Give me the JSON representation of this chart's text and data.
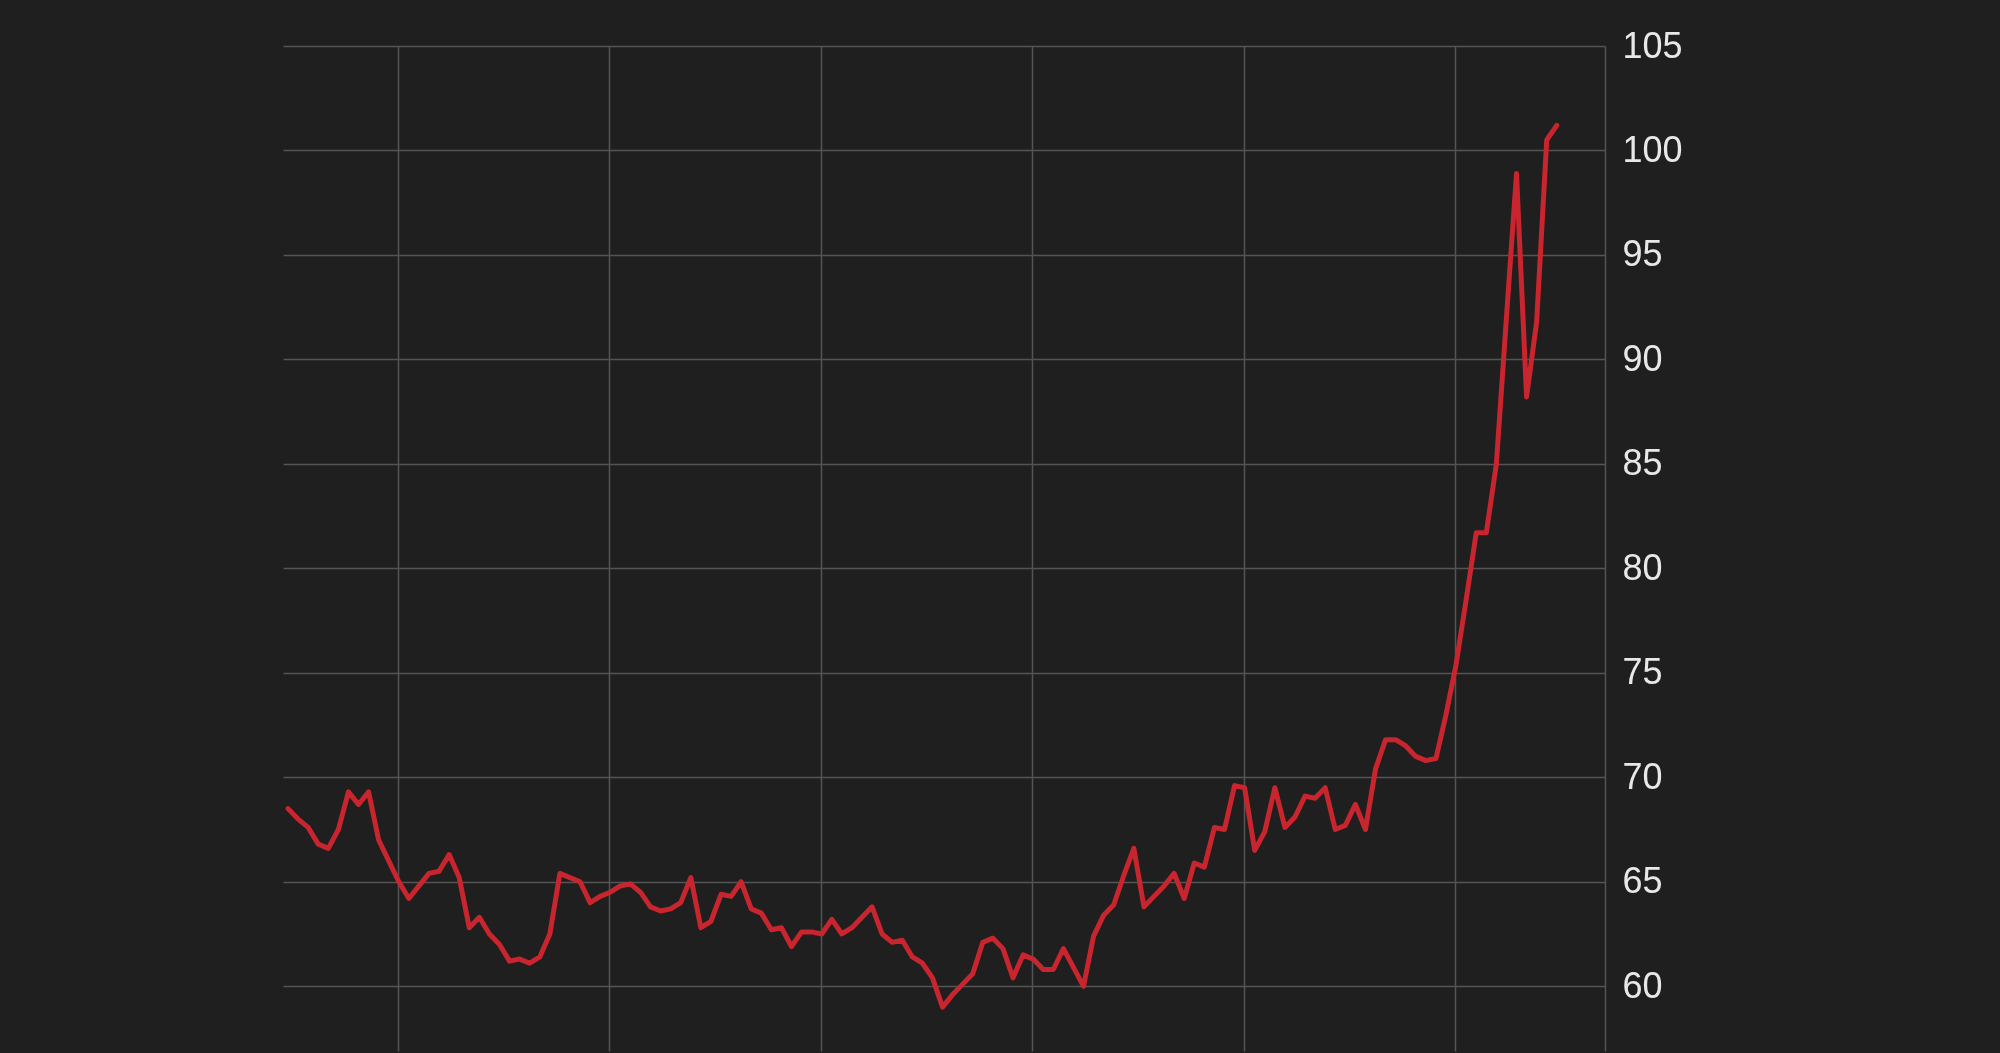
{
  "chart_data": {
    "type": "line",
    "categories": [
      null,
      null,
      null,
      null,
      null,
      null,
      null,
      null,
      null,
      null,
      null,
      null,
      null,
      null,
      null,
      null,
      null,
      null,
      null,
      null,
      null,
      null,
      null,
      null,
      null,
      null,
      null,
      null,
      null,
      null,
      null,
      null,
      null,
      null,
      null,
      null,
      null,
      null,
      null,
      null,
      null,
      null,
      null,
      null,
      null,
      null,
      null,
      null,
      null,
      null,
      null,
      null,
      null,
      null,
      null,
      null,
      null,
      null,
      null,
      null,
      null,
      null,
      null,
      null,
      null,
      null,
      null,
      null,
      null,
      null,
      null,
      null,
      null,
      null,
      null,
      null,
      null,
      null,
      null,
      null,
      null,
      null,
      null,
      null,
      null,
      null,
      null,
      null,
      null,
      null,
      null,
      null,
      null,
      null,
      null,
      null,
      null,
      null,
      null,
      null,
      null,
      null,
      null,
      null,
      null,
      null,
      null,
      null,
      null,
      null,
      null,
      null,
      null,
      null,
      null,
      null,
      null,
      null,
      null,
      null,
      null,
      null,
      null,
      null,
      null,
      null,
      null
    ],
    "values": [
      68.5,
      68.0,
      67.6,
      66.8,
      66.6,
      67.5,
      69.3,
      68.7,
      69.3,
      67.0,
      66.0,
      65.0,
      64.2,
      64.8,
      65.4,
      65.5,
      66.3,
      65.2,
      62.8,
      63.3,
      62.5,
      62.0,
      61.2,
      61.3,
      61.1,
      61.4,
      62.5,
      65.4,
      65.2,
      65.0,
      64.0,
      64.3,
      64.5,
      64.8,
      64.9,
      64.5,
      63.8,
      63.6,
      63.7,
      64.0,
      65.2,
      62.8,
      63.1,
      64.4,
      64.3,
      65.0,
      63.7,
      63.5,
      62.7,
      62.8,
      61.9,
      62.6,
      62.6,
      62.5,
      63.2,
      62.5,
      62.8,
      63.3,
      63.8,
      62.5,
      62.1,
      62.2,
      61.4,
      61.1,
      60.4,
      59.0,
      59.6,
      60.1,
      60.6,
      62.1,
      62.3,
      61.8,
      60.4,
      61.5,
      61.3,
      60.8,
      60.8,
      61.8,
      60.9,
      60.0,
      62.4,
      63.4,
      63.9,
      65.3,
      66.6,
      63.8,
      64.3,
      64.8,
      65.4,
      64.2,
      65.9,
      65.7,
      67.6,
      67.5,
      69.6,
      69.5,
      66.5,
      67.4,
      69.5,
      67.6,
      68.1,
      69.1,
      69.0,
      69.5,
      67.5,
      67.7,
      68.7,
      67.5,
      70.4,
      71.8,
      71.8,
      71.5,
      71.0,
      70.8,
      70.9,
      73.0,
      75.4,
      78.5,
      81.7,
      81.7,
      85.0,
      92.0,
      98.9,
      88.2,
      91.8,
      100.5,
      101.2
    ],
    "color": "#c9252e",
    "ylim": [
      56.9,
      105
    ],
    "yticks": [
      60,
      65,
      70,
      75,
      80,
      85,
      90,
      95,
      100,
      105
    ],
    "grid": true,
    "tick_labels": "y"
  }
}
